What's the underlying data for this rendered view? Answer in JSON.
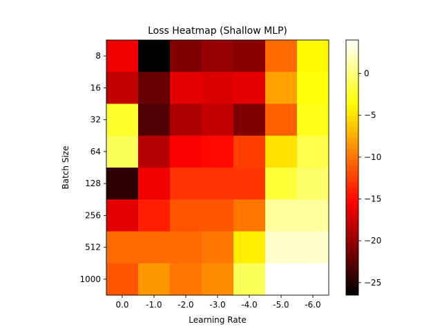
{
  "chart_data": {
    "type": "heatmap",
    "title": "Loss Heatmap (Shallow MLP)",
    "xlabel": "Learning Rate",
    "ylabel": "Batch Size",
    "x_categories": [
      "0.0",
      "-1.0",
      "-2.0",
      "-3.0",
      "-4.0",
      "-5.0",
      "-6.0"
    ],
    "y_categories": [
      "8",
      "16",
      "32",
      "64",
      "128",
      "256",
      "512",
      "1000"
    ],
    "values": [
      [
        -16.0,
        -26.5,
        -21.0,
        -20.0,
        -20.5,
        -10.5,
        -4.0
      ],
      [
        -18.0,
        -22.0,
        -16.5,
        -17.0,
        -16.5,
        -8.0,
        -3.5
      ],
      [
        -2.5,
        -23.0,
        -19.0,
        -18.0,
        -21.0,
        -11.0,
        -3.0
      ],
      [
        -1.0,
        -18.5,
        -15.5,
        -15.0,
        -12.5,
        -5.0,
        -1.5
      ],
      [
        -24.5,
        -16.0,
        -13.0,
        -13.0,
        -13.0,
        -2.0,
        -0.5
      ],
      [
        -16.5,
        -14.0,
        -11.5,
        -11.5,
        -10.0,
        1.0,
        1.0
      ],
      [
        -10.5,
        -10.5,
        -10.5,
        -10.0,
        -4.5,
        2.5,
        2.5
      ],
      [
        -11.5,
        -8.5,
        -10.0,
        -9.0,
        -1.0,
        4.0,
        4.0
      ]
    ],
    "colormap": "hot",
    "vmin": -26.5,
    "vmax": 4.0,
    "colorbar_ticks": [
      0,
      -5,
      -10,
      -15,
      -20,
      -25
    ],
    "colorbar_tick_labels": [
      "0",
      "−5",
      "−10",
      "−15",
      "−20",
      "−25"
    ],
    "grid": false
  }
}
